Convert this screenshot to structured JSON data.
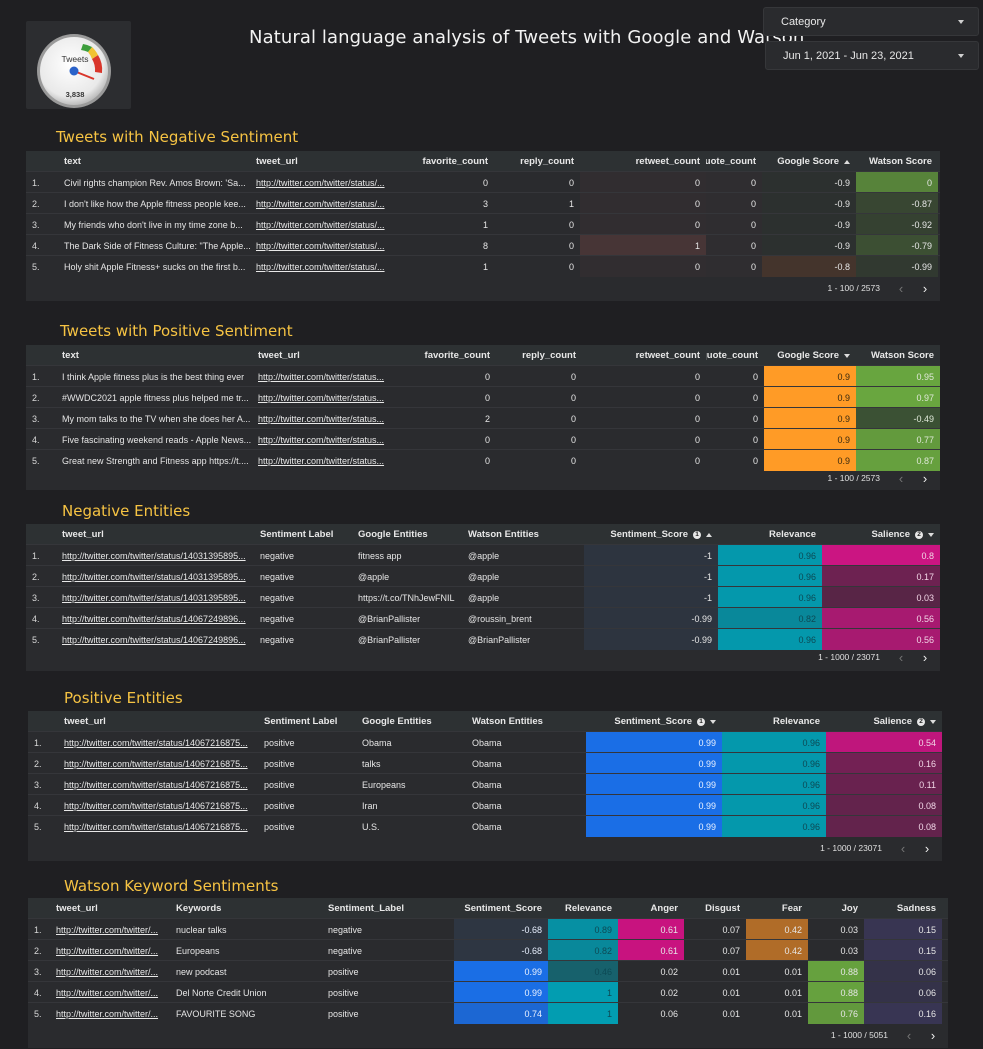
{
  "header": {
    "title": "Natural language analysis of Tweets with Google and Watson",
    "gauge": {
      "label": "Tweets",
      "value": "3,838",
      "icon": "gauge-icon"
    },
    "category_filter": {
      "label": "Category"
    },
    "date_filter": {
      "label": "Jun 1, 2021 - Jun 23, 2021"
    }
  },
  "colors": {
    "background": "#1f1f22",
    "section_title": "#f6c343",
    "google_positive": "#ff9b26",
    "watson_positive": "#6aa83f",
    "relevance": "#00a3b8",
    "salience": "#d01485",
    "sentiment_positive": "#1a6ee6",
    "anger": "#c8137f",
    "fear": "#b06c28",
    "joy": "#6aa83f",
    "sadness": "#3a3657"
  },
  "neg_tweets": {
    "title": "Tweets with Negative Sentiment",
    "columns": [
      "text",
      "tweet_url",
      "favorite_count",
      "reply_count",
      "retweet_count",
      "quote_count",
      "Google Score",
      "Watson Score"
    ],
    "rows": [
      [
        "1.",
        "Civil rights champion Rev. Amos Brown: 'Sa...",
        "http://twitter.com/twitter/status/...",
        "0",
        "0",
        "0",
        "0",
        "-0.9",
        "0"
      ],
      [
        "2.",
        "I don't like how the Apple fitness people kee...",
        "http://twitter.com/twitter/status/...",
        "3",
        "1",
        "0",
        "0",
        "-0.9",
        "-0.87"
      ],
      [
        "3.",
        "My friends who don't live in my time zone b...",
        "http://twitter.com/twitter/status/...",
        "1",
        "0",
        "0",
        "0",
        "-0.9",
        "-0.92"
      ],
      [
        "4.",
        "The Dark Side of Fitness Culture: \"The Apple...",
        "http://twitter.com/twitter/status/...",
        "8",
        "0",
        "1",
        "0",
        "-0.9",
        "-0.79"
      ],
      [
        "5.",
        "Holy shit Apple Fitness+ sucks on the first b...",
        "http://twitter.com/twitter/status/...",
        "1",
        "0",
        "0",
        "0",
        "-0.8",
        "-0.99"
      ]
    ],
    "pager": "1 - 100 / 2573"
  },
  "pos_tweets": {
    "title": "Tweets with Positive Sentiment",
    "columns": [
      "text",
      "tweet_url",
      "favorite_count",
      "reply_count",
      "retweet_count",
      "quote_count",
      "Google Score",
      "Watson Score"
    ],
    "rows": [
      [
        "1.",
        "I think Apple fitness plus is the best thing ever",
        "http://twitter.com/twitter/status...",
        "0",
        "0",
        "0",
        "0",
        "0.9",
        "0.95"
      ],
      [
        "2.",
        "#WWDC2021 apple fitness plus helped me tr...",
        "http://twitter.com/twitter/status...",
        "0",
        "0",
        "0",
        "0",
        "0.9",
        "0.97"
      ],
      [
        "3.",
        "My mom talks to the TV when she does her A...",
        "http://twitter.com/twitter/status...",
        "2",
        "0",
        "0",
        "0",
        "0.9",
        "-0.49"
      ],
      [
        "4.",
        "Five fascinating weekend reads - Apple News...",
        "http://twitter.com/twitter/status...",
        "0",
        "0",
        "0",
        "0",
        "0.9",
        "0.77"
      ],
      [
        "5.",
        "Great new Strength and Fitness app https://t....",
        "http://twitter.com/twitter/status...",
        "0",
        "0",
        "0",
        "0",
        "0.9",
        "0.87"
      ]
    ],
    "pager": "1 - 100 / 2573"
  },
  "neg_entities": {
    "title": "Negative Entities",
    "columns": [
      "tweet_url",
      "Sentiment Label",
      "Google Entities",
      "Watson Entities",
      "Sentiment_Score",
      "Relevance",
      "Salience"
    ],
    "rows": [
      [
        "1.",
        "http://twitter.com/twitter/status/14031395895...",
        "negative",
        "fitness app",
        "@apple",
        "-1",
        "0.96",
        "0.8"
      ],
      [
        "2.",
        "http://twitter.com/twitter/status/14031395895...",
        "negative",
        "@apple",
        "@apple",
        "-1",
        "0.96",
        "0.17"
      ],
      [
        "3.",
        "http://twitter.com/twitter/status/14031395895...",
        "negative",
        "https://t.co/TNhJewFNIL",
        "@apple",
        "-1",
        "0.96",
        "0.03"
      ],
      [
        "4.",
        "http://twitter.com/twitter/status/14067249896...",
        "negative",
        "@BrianPallister",
        "@roussin_brent",
        "-0.99",
        "0.82",
        "0.56"
      ],
      [
        "5.",
        "http://twitter.com/twitter/status/14067249896...",
        "negative",
        "@BrianPallister",
        "@BrianPallister",
        "-0.99",
        "0.96",
        "0.56"
      ]
    ],
    "pager": "1 - 1000 / 23071"
  },
  "pos_entities": {
    "title": "Positive Entities",
    "columns": [
      "tweet_url",
      "Sentiment Label",
      "Google Entities",
      "Watson Entities",
      "Sentiment_Score",
      "Relevance",
      "Salience"
    ],
    "rows": [
      [
        "1.",
        "http://twitter.com/twitter/status/14067216875...",
        "positive",
        "Obama",
        "Obama",
        "0.99",
        "0.96",
        "0.54"
      ],
      [
        "2.",
        "http://twitter.com/twitter/status/14067216875...",
        "positive",
        "talks",
        "Obama",
        "0.99",
        "0.96",
        "0.16"
      ],
      [
        "3.",
        "http://twitter.com/twitter/status/14067216875...",
        "positive",
        "Europeans",
        "Obama",
        "0.99",
        "0.96",
        "0.11"
      ],
      [
        "4.",
        "http://twitter.com/twitter/status/14067216875...",
        "positive",
        "Iran",
        "Obama",
        "0.99",
        "0.96",
        "0.08"
      ],
      [
        "5.",
        "http://twitter.com/twitter/status/14067216875...",
        "positive",
        "U.S.",
        "Obama",
        "0.99",
        "0.96",
        "0.08"
      ]
    ],
    "pager": "1 - 1000 / 23071"
  },
  "keywords": {
    "title": "Watson Keyword Sentiments",
    "columns": [
      "tweet_url",
      "Keywords",
      "Sentiment_Label",
      "Sentiment_Score",
      "Relevance",
      "Anger",
      "Disgust",
      "Fear",
      "Joy",
      "Sadness"
    ],
    "rows": [
      [
        "1.",
        "http://twitter.com/twitter/...",
        "nuclear talks",
        "negative",
        "-0.68",
        "0.89",
        "0.61",
        "0.07",
        "0.42",
        "0.03",
        "0.15"
      ],
      [
        "2.",
        "http://twitter.com/twitter/...",
        "Europeans",
        "negative",
        "-0.68",
        "0.82",
        "0.61",
        "0.07",
        "0.42",
        "0.03",
        "0.15"
      ],
      [
        "3.",
        "http://twitter.com/twitter/...",
        "new podcast",
        "positive",
        "0.99",
        "0.46",
        "0.02",
        "0.01",
        "0.01",
        "0.88",
        "0.06"
      ],
      [
        "4.",
        "http://twitter.com/twitter/...",
        "Del Norte Credit Union",
        "positive",
        "0.99",
        "1",
        "0.02",
        "0.01",
        "0.01",
        "0.88",
        "0.06"
      ],
      [
        "5.",
        "http://twitter.com/twitter/...",
        "FAVOURITE SONG",
        "positive",
        "0.74",
        "1",
        "0.06",
        "0.01",
        "0.01",
        "0.76",
        "0.16"
      ]
    ],
    "pager": "1 - 1000 / 5051"
  },
  "icons": {
    "prev": "chevron-left-icon",
    "next": "chevron-right-icon",
    "info": "info-icon",
    "sort": "sort-icon",
    "dropdown": "caret-down-icon"
  }
}
